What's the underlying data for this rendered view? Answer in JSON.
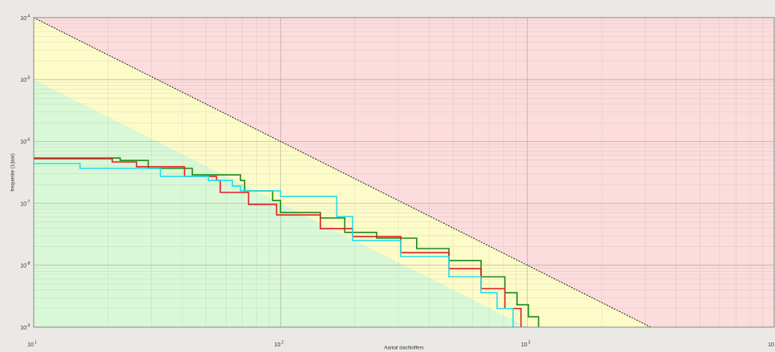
{
  "chart_data": {
    "type": "step",
    "xlabel": "Aantal slachtoffers",
    "ylabel": "frequentie (1/jaar)",
    "xscale": "log",
    "yscale": "log",
    "grid": true,
    "xlim": [
      10,
      10000
    ],
    "ylim": [
      1e-09,
      0.0001
    ],
    "xticks": [
      {
        "value": 10,
        "label": "10",
        "exponent": "1"
      },
      {
        "value": 100,
        "label": "10",
        "exponent": "2"
      },
      {
        "value": 1000,
        "label": "10",
        "exponent": "3"
      },
      {
        "value": 10000,
        "label": "10",
        "exponent": "4"
      }
    ],
    "yticks": [
      {
        "value": 0.0001,
        "label": "10",
        "exponent": "-4"
      },
      {
        "value": 1e-05,
        "label": "10",
        "exponent": "-5"
      },
      {
        "value": 1e-06,
        "label": "10",
        "exponent": "-6"
      },
      {
        "value": 1e-07,
        "label": "10",
        "exponent": "-7"
      },
      {
        "value": 1e-08,
        "label": "10",
        "exponent": "-8"
      },
      {
        "value": 1e-09,
        "label": "10",
        "exponent": "-9"
      }
    ],
    "zones": [
      {
        "color": "#fcdcdc",
        "x": [
          10,
          3162
        ],
        "values": [
          0.0001,
          1e-09
        ],
        "line": "#222"
      },
      {
        "color": "#fdfbc8",
        "x": [
          10,
          1000
        ],
        "values": [
          1e-05,
          1e-09
        ]
      },
      {
        "color": "#d9f8d6"
      }
    ],
    "series": [
      {
        "color": "#1a8a1a",
        "x": [
          10,
          22.4,
          29.1,
          43.9,
          68.8,
          71.5,
          92.9,
          100,
          145,
          182,
          245,
          356,
          481,
          649,
          811,
          908,
          1010,
          1110
        ],
        "values": [
          5.4e-07,
          4.94e-07,
          3.67e-07,
          2.89e-07,
          2.34e-07,
          1.59e-07,
          1.11e-07,
          7.1e-08,
          5.8e-08,
          3.4e-08,
          2.74e-08,
          1.86e-08,
          1.19e-08,
          6.5e-09,
          3.6e-09,
          2.3e-09,
          1.47e-09,
          1e-09
        ]
      },
      {
        "color": "#e02020",
        "x": [
          10,
          20.8,
          26.1,
          40.8,
          55,
          57,
          74.2,
          96.4,
          145,
          196,
          307,
          481,
          649,
          811,
          942
        ],
        "values": [
          5.25e-07,
          4.66e-07,
          3.9e-07,
          2.72e-07,
          2.34e-07,
          1.5e-07,
          9.6e-08,
          6.5e-08,
          3.9e-08,
          2.9e-08,
          1.6e-08,
          8.8e-09,
          4.2e-09,
          2e-09,
          1e-09
        ]
      },
      {
        "color": "#22e0e8",
        "x": [
          10,
          15.4,
          32.6,
          51,
          63.8,
          68.8,
          100,
          169,
          196,
          307,
          481,
          649,
          754,
          875
        ],
        "values": [
          4.39e-07,
          3.67e-07,
          2.72e-07,
          2.34e-07,
          1.9e-07,
          1.59e-07,
          1.29e-07,
          6.1e-08,
          2.5e-08,
          1.38e-08,
          6.5e-09,
          3.6e-09,
          2e-09,
          1e-09
        ]
      }
    ]
  }
}
